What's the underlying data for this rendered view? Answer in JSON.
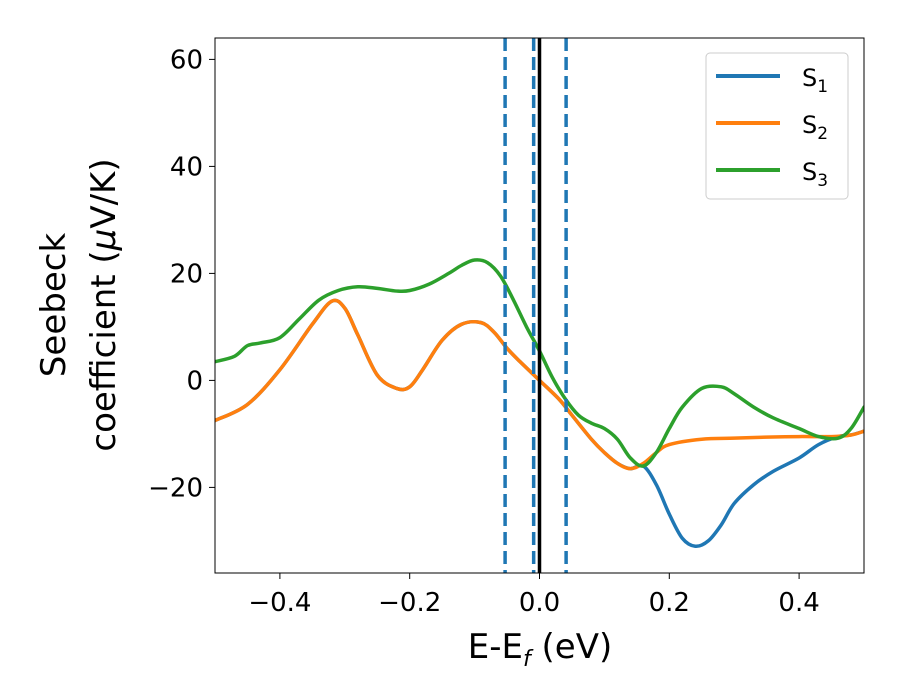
{
  "chart_data": {
    "type": "line",
    "xlabel": "E-E",
    "xlabel_sub": "f",
    "xlabel_unit": " (eV)",
    "ylabel_line1": "Seebeck",
    "ylabel_line2": "coefficient  (",
    "ylabel_mu": "μ",
    "ylabel_unit": "V/K)",
    "xlim": [
      -0.5,
      0.5
    ],
    "ylim": [
      -36,
      64
    ],
    "xticks": [
      -0.4,
      -0.2,
      0.0,
      0.2,
      0.4
    ],
    "xtick_labels": [
      "−0.4",
      "−0.2",
      "0.0",
      "0.2",
      "0.4"
    ],
    "yticks": [
      -20,
      0,
      20,
      40,
      60
    ],
    "ytick_labels": [
      "−20",
      "0",
      "20",
      "40",
      "60"
    ],
    "grid": false,
    "legend": "top-right",
    "series": [
      {
        "name": "S",
        "sub": "1",
        "color": "#1f77b4",
        "x": [
          -0.5,
          -0.45,
          -0.4,
          -0.35,
          -0.32,
          -0.3,
          -0.28,
          -0.25,
          -0.22,
          -0.2,
          -0.18,
          -0.15,
          -0.12,
          -0.09,
          -0.07,
          -0.05,
          -0.03,
          0.0,
          0.03,
          0.05,
          0.08,
          0.1,
          0.12,
          0.14,
          0.16,
          0.18,
          0.2,
          0.22,
          0.24,
          0.26,
          0.28,
          0.3,
          0.33,
          0.36,
          0.4,
          0.43,
          0.46,
          0.48,
          0.5
        ],
        "y": [
          -7.5,
          -4.5,
          2.0,
          10.5,
          14.8,
          13.5,
          8.5,
          1.0,
          -1.5,
          -1.2,
          2.0,
          7.5,
          10.5,
          10.8,
          9.0,
          6.0,
          3.5,
          0.0,
          -3.5,
          -6.5,
          -11.0,
          -13.5,
          -15.5,
          -16.5,
          -16.0,
          -19.5,
          -25.0,
          -29.5,
          -31.0,
          -30.0,
          -27.0,
          -23.0,
          -19.5,
          -17.0,
          -14.5,
          -12.0,
          -10.5,
          -10.2,
          -9.5
        ]
      },
      {
        "name": "S",
        "sub": "2",
        "color": "#ff7f0e",
        "x": [
          -0.5,
          -0.45,
          -0.4,
          -0.35,
          -0.32,
          -0.3,
          -0.28,
          -0.25,
          -0.22,
          -0.2,
          -0.18,
          -0.15,
          -0.12,
          -0.09,
          -0.07,
          -0.05,
          -0.03,
          0.0,
          0.03,
          0.05,
          0.08,
          0.1,
          0.12,
          0.14,
          0.16,
          0.18,
          0.2,
          0.25,
          0.3,
          0.35,
          0.4,
          0.45,
          0.48,
          0.5
        ],
        "y": [
          -7.5,
          -4.5,
          2.0,
          10.5,
          14.8,
          13.5,
          8.5,
          1.0,
          -1.5,
          -1.2,
          2.0,
          7.5,
          10.5,
          10.8,
          9.0,
          6.0,
          3.5,
          0.0,
          -3.5,
          -6.5,
          -11.0,
          -13.5,
          -15.5,
          -16.5,
          -15.5,
          -13.5,
          -12.0,
          -11.0,
          -10.8,
          -10.6,
          -10.5,
          -10.5,
          -10.2,
          -9.5
        ]
      },
      {
        "name": "S",
        "sub": "3",
        "color": "#2ca02c",
        "x": [
          -0.5,
          -0.47,
          -0.45,
          -0.43,
          -0.4,
          -0.37,
          -0.34,
          -0.31,
          -0.28,
          -0.25,
          -0.22,
          -0.2,
          -0.17,
          -0.14,
          -0.12,
          -0.1,
          -0.08,
          -0.06,
          -0.04,
          -0.02,
          0.0,
          0.02,
          0.04,
          0.06,
          0.08,
          0.1,
          0.12,
          0.14,
          0.16,
          0.18,
          0.2,
          0.22,
          0.25,
          0.28,
          0.3,
          0.33,
          0.36,
          0.4,
          0.43,
          0.46,
          0.48,
          0.5
        ],
        "y": [
          3.5,
          4.5,
          6.5,
          7.0,
          8.0,
          11.5,
          15.0,
          16.8,
          17.5,
          17.2,
          16.7,
          16.8,
          18.0,
          20.0,
          21.5,
          22.5,
          22.0,
          19.5,
          15.0,
          10.0,
          5.5,
          0.5,
          -3.5,
          -6.5,
          -8.0,
          -9.0,
          -11.0,
          -14.5,
          -16.0,
          -13.5,
          -9.0,
          -5.0,
          -1.5,
          -1.2,
          -2.5,
          -5.0,
          -7.0,
          -9.0,
          -10.5,
          -10.8,
          -9.0,
          -5.0
        ]
      }
    ],
    "vlines": [
      {
        "x": -0.053,
        "style": "dashed",
        "color": "#1f77b4"
      },
      {
        "x": -0.009,
        "style": "dashed",
        "color": "#1f77b4"
      },
      {
        "x": 0.0,
        "style": "solid",
        "color": "#000000"
      },
      {
        "x": 0.041,
        "style": "dashed",
        "color": "#1f77b4"
      }
    ]
  }
}
